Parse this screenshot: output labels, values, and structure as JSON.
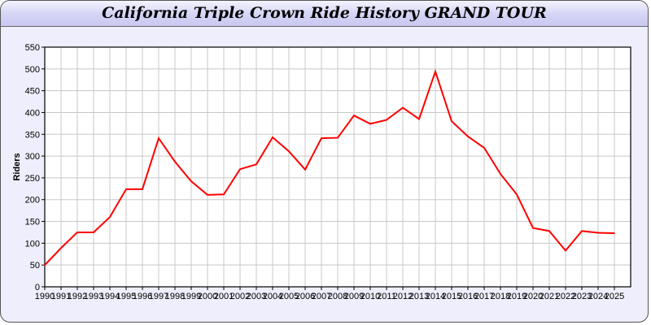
{
  "title": "California Triple Crown Ride History GRAND TOUR",
  "chart_data": {
    "type": "line",
    "title": "California Triple Crown Ride History GRAND TOUR",
    "xlabel": "",
    "ylabel": "Riders",
    "ylim": [
      0,
      550
    ],
    "yticks": [
      0,
      50,
      100,
      150,
      200,
      250,
      300,
      350,
      400,
      450,
      500,
      550
    ],
    "grid": true,
    "line_color": "#ff0000",
    "categories": [
      "1990",
      "1991",
      "1992",
      "1993",
      "1994",
      "1995",
      "1996",
      "1997",
      "1998",
      "1999",
      "2000",
      "2001",
      "2002",
      "2003",
      "2004",
      "2005",
      "2006",
      "2007",
      "2008",
      "2009",
      "2010",
      "2011",
      "2012",
      "2013",
      "2014",
      "2015",
      "2016",
      "2017",
      "2018",
      "2019",
      "2020",
      "2021",
      "2022",
      "2023",
      "2024",
      "2025"
    ],
    "values": [
      50,
      89,
      125,
      125,
      160,
      224,
      224,
      341,
      287,
      242,
      211,
      212,
      270,
      281,
      343,
      311,
      269,
      341,
      342,
      393,
      374,
      383,
      411,
      385,
      494,
      380,
      345,
      319,
      259,
      212,
      135,
      128,
      83,
      128,
      124,
      123
    ]
  }
}
